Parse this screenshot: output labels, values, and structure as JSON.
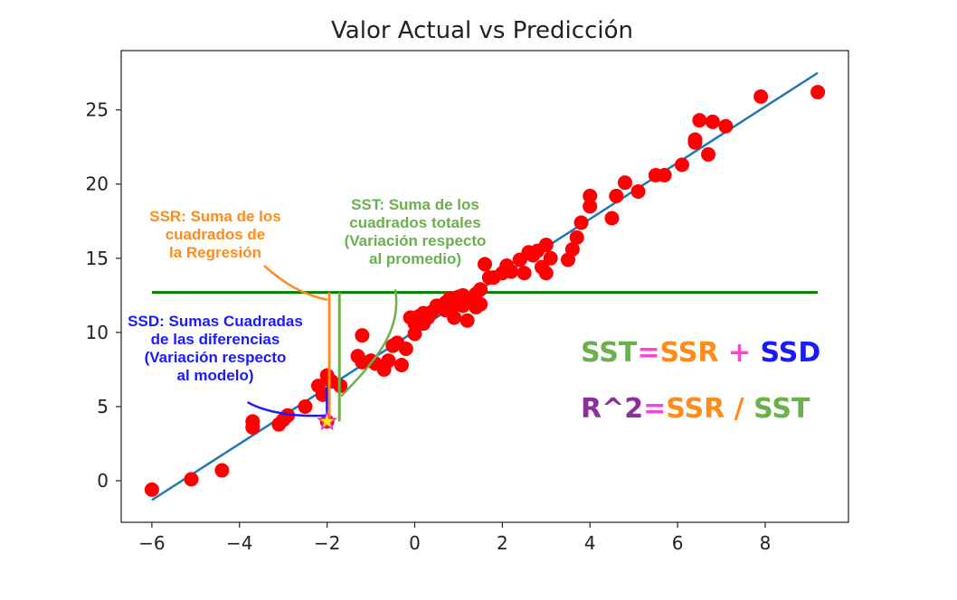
{
  "chart_data": {
    "type": "scatter",
    "title": "Valor Actual vs Predicción",
    "xlabel": "",
    "ylabel": "",
    "xlim": [
      -6.7,
      9.9
    ],
    "ylim": [
      -2.8,
      29.0
    ],
    "xticks": [
      -6,
      -4,
      -2,
      0,
      2,
      4,
      6,
      8
    ],
    "xtick_labels": [
      "−6",
      "−4",
      "−2",
      "0",
      "2",
      "4",
      "6",
      "8"
    ],
    "yticks": [
      0,
      5,
      10,
      15,
      20,
      25
    ],
    "ytick_labels": [
      "0",
      "5",
      "10",
      "15",
      "20",
      "25"
    ],
    "grid": false,
    "colors": {
      "points": "#ff0000",
      "regression": "#1f77b4",
      "mean": "#008000",
      "ssr": "#ff8c1a",
      "sst": "#6ab04c",
      "ssd": "#1a1aff",
      "equals": "#ff44cc",
      "r2": "#8e2d9e",
      "star_fill": "#ffe600",
      "star_stroke": "#d633c8"
    },
    "regression_line": {
      "x": [
        -6.0,
        9.2
      ],
      "y": [
        -1.3,
        27.5
      ]
    },
    "mean_line": {
      "x": [
        -6.0,
        9.2
      ],
      "y": 12.7
    },
    "points": {
      "x": [
        -6.0,
        -5.1,
        -4.4,
        -3.7,
        -3.7,
        -3.1,
        -3.0,
        -2.9,
        -2.5,
        -2.2,
        -2.1,
        -2.0,
        -2.0,
        -1.9,
        -1.7,
        -1.3,
        -1.2,
        -1.2,
        -1.0,
        -0.9,
        -0.7,
        -0.6,
        -0.5,
        -0.4,
        -0.3,
        -0.2,
        -0.1,
        0.0,
        0.0,
        0.1,
        0.2,
        0.2,
        0.3,
        0.4,
        0.5,
        0.7,
        0.7,
        0.8,
        0.8,
        0.9,
        1.0,
        1.0,
        1.1,
        1.1,
        1.2,
        1.3,
        1.4,
        1.4,
        1.5,
        1.5,
        1.6,
        1.7,
        1.8,
        2.0,
        2.1,
        2.2,
        2.4,
        2.5,
        2.6,
        2.7,
        2.8,
        2.9,
        3.0,
        3.0,
        3.1,
        3.5,
        3.6,
        3.7,
        3.8,
        4.0,
        4.0,
        4.5,
        4.6,
        4.8,
        5.1,
        5.5,
        5.7,
        6.1,
        6.4,
        6.4,
        6.5,
        6.7,
        6.8,
        7.1,
        7.9,
        9.2
      ],
      "y": [
        -0.6,
        0.1,
        0.7,
        3.6,
        4.0,
        3.8,
        4.1,
        4.4,
        5.0,
        6.4,
        5.8,
        7.1,
        4.0,
        6.7,
        6.4,
        8.4,
        8.0,
        9.8,
        8.1,
        7.9,
        7.5,
        8.1,
        9.1,
        9.3,
        7.8,
        8.9,
        11.0,
        9.9,
        10.6,
        11.1,
        10.6,
        11.3,
        11.0,
        11.4,
        11.8,
        12.0,
        11.5,
        12.3,
        11.5,
        11.0,
        12.4,
        11.9,
        12.5,
        11.8,
        10.8,
        12.2,
        12.6,
        11.7,
        11.9,
        12.9,
        14.6,
        13.7,
        13.7,
        14.0,
        14.5,
        14.1,
        14.9,
        14.0,
        15.4,
        15.2,
        15.5,
        14.4,
        15.9,
        14.0,
        15.0,
        14.9,
        15.6,
        16.4,
        17.4,
        18.5,
        19.2,
        17.7,
        19.2,
        20.1,
        19.5,
        20.6,
        20.6,
        21.3,
        22.8,
        23.0,
        24.3,
        22.0,
        24.2,
        23.9,
        25.9,
        26.2
      ]
    },
    "highlight_point": {
      "x": -2.0,
      "y": 4.0
    },
    "vertical_segments": [
      {
        "name": "SSD",
        "x": -2.0,
        "y": [
          4.0,
          6.3
        ]
      },
      {
        "name": "SSR",
        "x": -1.95,
        "y": [
          4.0,
          12.7
        ]
      },
      {
        "name": "SST",
        "x": -1.72,
        "y": [
          4.0,
          12.7
        ]
      }
    ],
    "annotations": {
      "ssr": [
        "SSR: Suma de los",
        "cuadrados de",
        "la Regresión"
      ],
      "sst": [
        "SST: Suma de los",
        "cuadrados totales",
        "(Variación respecto",
        "al promedio)"
      ],
      "ssd": [
        "SSD: Sumas Cuadradas",
        "de las diferencias",
        "(Variación respecto",
        "al modelo)"
      ]
    },
    "formula1": {
      "a": "SST",
      "eq": "=",
      "b": "SSR",
      "op": "+",
      "c": "SSD"
    },
    "formula2": {
      "a": "R^2",
      "eq": "=",
      "b": "SSR",
      "op": "/",
      "c": "SST"
    }
  }
}
